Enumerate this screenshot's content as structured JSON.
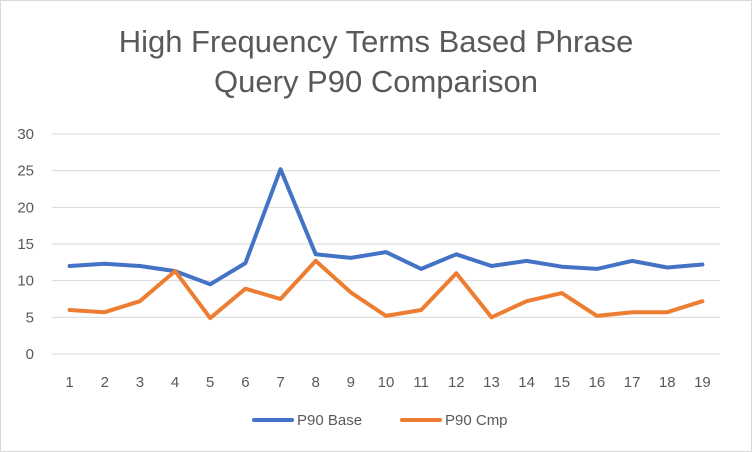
{
  "chart_data": {
    "type": "line",
    "title_line1": "High Frequency Terms Based Phrase",
    "title_line2": "Query P90 Comparison",
    "x": [
      1,
      2,
      3,
      4,
      5,
      6,
      7,
      8,
      9,
      10,
      11,
      12,
      13,
      14,
      15,
      16,
      17,
      18,
      19
    ],
    "ylim": [
      0,
      30
    ],
    "yticks": [
      0,
      5,
      10,
      15,
      20,
      25,
      30
    ],
    "grid": true,
    "legend": "bottom",
    "xlabel": "",
    "ylabel": "",
    "series": [
      {
        "name": "P90 Base",
        "color": "#4472c4",
        "values": [
          12.0,
          12.3,
          12.0,
          11.3,
          9.5,
          12.4,
          25.2,
          13.6,
          13.1,
          13.9,
          11.6,
          13.6,
          12.0,
          12.7,
          11.9,
          11.6,
          12.7,
          11.8,
          12.2
        ]
      },
      {
        "name": "P90 Cmp",
        "color": "#ed7d31",
        "values": [
          6.0,
          5.7,
          7.2,
          11.3,
          4.9,
          8.9,
          7.5,
          12.7,
          8.4,
          5.2,
          6.0,
          11.0,
          5.0,
          7.2,
          8.3,
          5.2,
          5.7,
          5.7,
          7.2
        ]
      }
    ]
  }
}
